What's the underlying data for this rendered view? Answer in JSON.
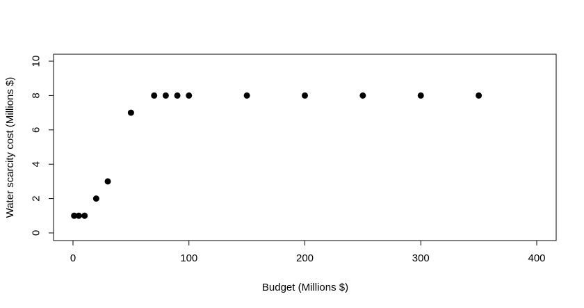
{
  "chart_data": {
    "type": "scatter",
    "title": "",
    "xlabel": "Budget (Millions $)",
    "ylabel": "Water scarcity cost (Millions $)",
    "xlim": [
      0,
      400
    ],
    "ylim": [
      0,
      10
    ],
    "x_ticks": [
      0,
      100,
      200,
      300,
      400
    ],
    "y_ticks": [
      0,
      2,
      4,
      6,
      8,
      10
    ],
    "x_tick_labels": [
      "0",
      "100",
      "200",
      "300",
      "400"
    ],
    "y_tick_labels": [
      "0",
      "2",
      "4",
      "6",
      "8",
      "10"
    ],
    "grid": false,
    "legend": "none",
    "marker_color": "#000000",
    "x": [
      1,
      5,
      10,
      20,
      30,
      50,
      70,
      80,
      90,
      100,
      150,
      200,
      250,
      300,
      350
    ],
    "y": [
      1,
      1,
      1,
      2,
      3,
      7,
      8,
      8,
      8,
      8,
      8,
      8,
      8,
      8,
      8
    ]
  }
}
